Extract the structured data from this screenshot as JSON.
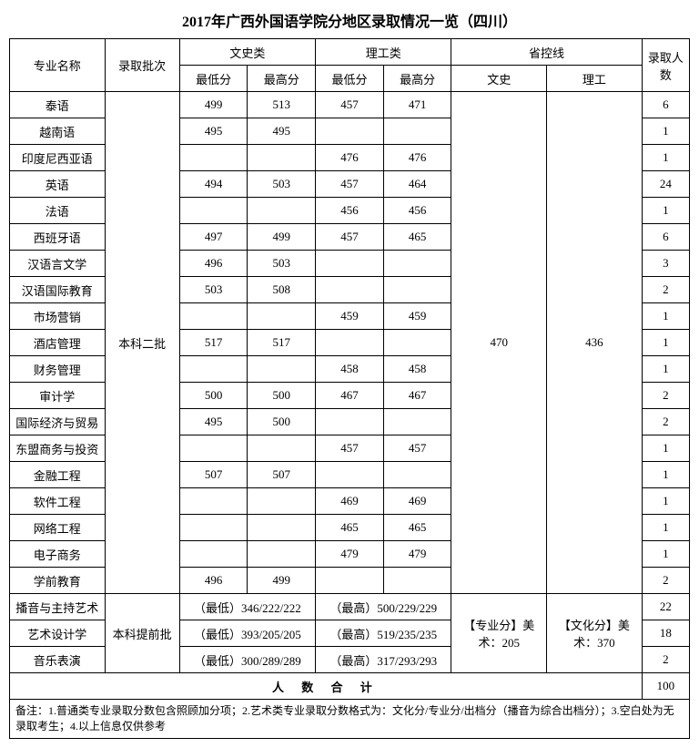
{
  "title": "2017年广西外国语学院分地区录取情况一览（四川）",
  "headers": {
    "major": "专业名称",
    "batch": "录取批次",
    "arts": "文史类",
    "science": "理工类",
    "province_line": "省控线",
    "count": "录取人数",
    "min": "最低分",
    "max": "最高分",
    "arts_ctrl": "文史",
    "science_ctrl": "理工"
  },
  "batch_regular": "本科二批",
  "batch_art": "本科提前批",
  "province_regular": {
    "arts": "470",
    "science": "436"
  },
  "province_art": {
    "arts": "【专业分】美术：205",
    "science": "【文化分】美术：370"
  },
  "rows": [
    {
      "major": "泰语",
      "a_min": "499",
      "a_max": "513",
      "s_min": "457",
      "s_max": "471",
      "count": "6"
    },
    {
      "major": "越南语",
      "a_min": "495",
      "a_max": "495",
      "s_min": "",
      "s_max": "",
      "count": "1"
    },
    {
      "major": "印度尼西亚语",
      "a_min": "",
      "a_max": "",
      "s_min": "476",
      "s_max": "476",
      "count": "1"
    },
    {
      "major": "英语",
      "a_min": "494",
      "a_max": "503",
      "s_min": "457",
      "s_max": "464",
      "count": "24"
    },
    {
      "major": "法语",
      "a_min": "",
      "a_max": "",
      "s_min": "456",
      "s_max": "456",
      "count": "1"
    },
    {
      "major": "西班牙语",
      "a_min": "497",
      "a_max": "499",
      "s_min": "457",
      "s_max": "465",
      "count": "6"
    },
    {
      "major": "汉语言文学",
      "a_min": "496",
      "a_max": "503",
      "s_min": "",
      "s_max": "",
      "count": "3"
    },
    {
      "major": "汉语国际教育",
      "a_min": "503",
      "a_max": "508",
      "s_min": "",
      "s_max": "",
      "count": "2"
    },
    {
      "major": "市场营销",
      "a_min": "",
      "a_max": "",
      "s_min": "459",
      "s_max": "459",
      "count": "1"
    },
    {
      "major": "酒店管理",
      "a_min": "517",
      "a_max": "517",
      "s_min": "",
      "s_max": "",
      "count": "1"
    },
    {
      "major": "财务管理",
      "a_min": "",
      "a_max": "",
      "s_min": "458",
      "s_max": "458",
      "count": "1"
    },
    {
      "major": "审计学",
      "a_min": "500",
      "a_max": "500",
      "s_min": "467",
      "s_max": "467",
      "count": "2"
    },
    {
      "major": "国际经济与贸易",
      "a_min": "495",
      "a_max": "500",
      "s_min": "",
      "s_max": "",
      "count": "2"
    },
    {
      "major": "东盟商务与投资",
      "a_min": "",
      "a_max": "",
      "s_min": "457",
      "s_max": "457",
      "count": "1"
    },
    {
      "major": "金融工程",
      "a_min": "507",
      "a_max": "507",
      "s_min": "",
      "s_max": "",
      "count": "1"
    },
    {
      "major": "软件工程",
      "a_min": "",
      "a_max": "",
      "s_min": "469",
      "s_max": "469",
      "count": "1"
    },
    {
      "major": "网络工程",
      "a_min": "",
      "a_max": "",
      "s_min": "465",
      "s_max": "465",
      "count": "1"
    },
    {
      "major": "电子商务",
      "a_min": "",
      "a_max": "",
      "s_min": "479",
      "s_max": "479",
      "count": "1"
    },
    {
      "major": "学前教育",
      "a_min": "496",
      "a_max": "499",
      "s_min": "",
      "s_max": "",
      "count": "2"
    }
  ],
  "art_rows": [
    {
      "major": "播音与主持艺术",
      "low": "（最低）346/222/222",
      "high": "（最高）500/229/229",
      "count": "22"
    },
    {
      "major": "艺术设计学",
      "low": "（最低）393/205/205",
      "high": "（最高）519/235/235",
      "count": "18"
    },
    {
      "major": "音乐表演",
      "low": "（最低）300/289/289",
      "high": "（最高）317/293/293",
      "count": "2"
    }
  ],
  "total": {
    "label": "人 数 合 计",
    "value": "100"
  },
  "footnote": "备注：1.普通类专业录取分数包含照顾加分项；2.艺术类专业录取分数格式为：文化分/专业分/出档分（播音为综合出档分）；3.空白处为无录取考生；4.以上信息仅供参考"
}
